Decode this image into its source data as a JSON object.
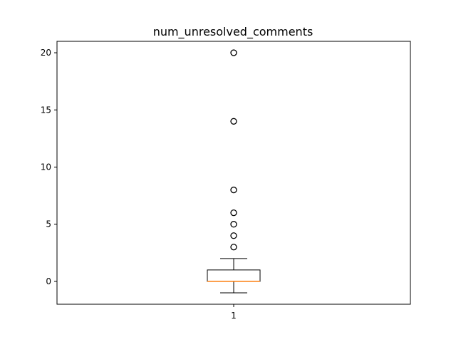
{
  "chart_data": {
    "type": "box",
    "title": "num_unresolved_comments",
    "categories": [
      "1"
    ],
    "ylim": [
      -2,
      21
    ],
    "yticks": [
      0,
      5,
      10,
      15,
      20
    ],
    "grid": false,
    "box": {
      "whisker_low": -1,
      "q1": 0,
      "median": 0,
      "q3": 1,
      "whisker_high": 2,
      "outliers": [
        3,
        4,
        5,
        6,
        8,
        14,
        20
      ]
    },
    "colors": {
      "box": "#000000",
      "median": "#ff7f0e",
      "outlier": "#000000",
      "background": "#ffffff"
    }
  }
}
